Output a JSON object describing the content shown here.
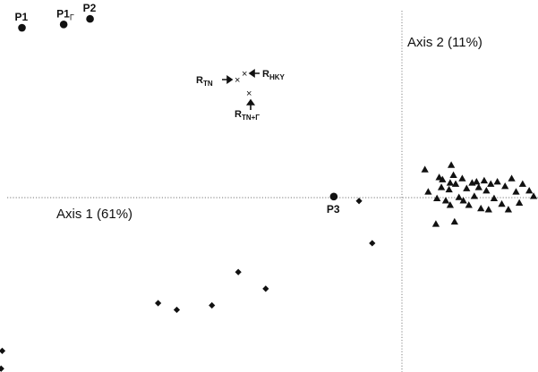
{
  "chart_data": {
    "type": "scatter",
    "title": "",
    "xlabel": "Axis 1 (61%)",
    "ylabel": "Axis 2 (11%)",
    "grid": false,
    "xlim": [
      -36,
      13
    ],
    "ylim": [
      -16,
      17.5
    ],
    "series": [
      {
        "marker": "circle",
        "points": [
          {
            "label": "P1",
            "x": -34.0,
            "y": 15.0
          },
          {
            "label": "P1",
            "label_sub": "Γ",
            "x": -30.2,
            "y": 15.3
          },
          {
            "label": "P2",
            "x": -27.8,
            "y": 15.8
          },
          {
            "label": "P3",
            "x": -5.6,
            "y": -0.2
          }
        ]
      },
      {
        "marker": "diamond",
        "points": [
          {
            "x": -3.3,
            "y": -0.6
          },
          {
            "x": -2.1,
            "y": -4.4
          },
          {
            "x": -14.3,
            "y": -7.0
          },
          {
            "x": -11.8,
            "y": -8.5
          },
          {
            "x": -21.6,
            "y": -9.8
          },
          {
            "x": -19.9,
            "y": -10.4
          },
          {
            "x": -16.7,
            "y": -10.0
          },
          {
            "x": -35.8,
            "y": -14.1
          },
          {
            "x": -35.9,
            "y": -15.7
          }
        ]
      },
      {
        "marker": "triangle",
        "points": [
          {
            "x": 2.7,
            "y": 2.2
          },
          {
            "x": 3.0,
            "y": 0.2
          },
          {
            "x": 3.8,
            "y": -0.4
          },
          {
            "x": 3.7,
            "y": -2.7
          },
          {
            "x": 4.0,
            "y": 1.5
          },
          {
            "x": 4.3,
            "y": 1.3
          },
          {
            "x": 4.2,
            "y": 0.6
          },
          {
            "x": 4.6,
            "y": -0.6
          },
          {
            "x": 4.9,
            "y": 0.4
          },
          {
            "x": 5.0,
            "y": 1.0
          },
          {
            "x": 5.1,
            "y": 2.6
          },
          {
            "x": 5.3,
            "y": 1.7
          },
          {
            "x": 5.0,
            "y": -1.0
          },
          {
            "x": 5.5,
            "y": 0.9
          },
          {
            "x": 5.8,
            "y": -0.3
          },
          {
            "x": 5.4,
            "y": -2.5
          },
          {
            "x": 6.1,
            "y": 1.4
          },
          {
            "x": 6.2,
            "y": -0.6
          },
          {
            "x": 6.5,
            "y": 0.5
          },
          {
            "x": 6.7,
            "y": -1.0
          },
          {
            "x": 7.0,
            "y": 1.0
          },
          {
            "x": 7.2,
            "y": -0.2
          },
          {
            "x": 7.4,
            "y": 1.1
          },
          {
            "x": 7.6,
            "y": 0.6
          },
          {
            "x": 7.8,
            "y": -1.3
          },
          {
            "x": 8.1,
            "y": 1.2
          },
          {
            "x": 8.3,
            "y": 0.3
          },
          {
            "x": 8.5,
            "y": -1.4
          },
          {
            "x": 8.7,
            "y": 0.9
          },
          {
            "x": 9.0,
            "y": -0.4
          },
          {
            "x": 9.3,
            "y": 1.1
          },
          {
            "x": 9.7,
            "y": -0.9
          },
          {
            "x": 10.0,
            "y": 0.7
          },
          {
            "x": 10.3,
            "y": -1.4
          },
          {
            "x": 10.6,
            "y": 1.4
          },
          {
            "x": 11.0,
            "y": 0.2
          },
          {
            "x": 11.3,
            "y": -0.8
          },
          {
            "x": 11.6,
            "y": 0.9
          },
          {
            "x": 12.2,
            "y": 0.3
          },
          {
            "x": 12.6,
            "y": -0.2
          }
        ]
      }
    ],
    "inset": {
      "R_TN": {
        "text": "R",
        "sub": "TN"
      },
      "R_HKY": {
        "text": "R",
        "sub": "HKY"
      },
      "R_TN_G": {
        "text": "R",
        "sub": "TN+Γ"
      }
    }
  }
}
